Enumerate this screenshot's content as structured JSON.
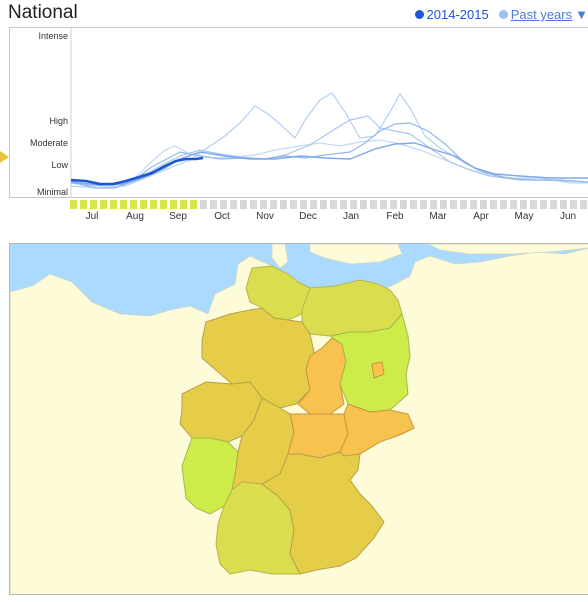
{
  "header": {
    "title": "National",
    "legend_current_label": "2014-2015",
    "legend_past_label": "Past years",
    "legend_past_arrow": "▼",
    "current_color": "#1c55d8",
    "past_color": "#9cc0ef"
  },
  "chart_data": {
    "type": "line",
    "y_levels": [
      "Intense",
      "High",
      "Moderate",
      "Low",
      "Minimal"
    ],
    "months": [
      "Jul",
      "Aug",
      "Sep",
      "Oct",
      "Nov",
      "Dec",
      "Jan",
      "Feb",
      "Mar",
      "Apr",
      "May",
      "Jun"
    ],
    "current_series_weeks": 13,
    "grid": false
  },
  "map": {
    "country": "Germany",
    "colors": {
      "water": "#aadaff",
      "land": "#fdfbd8",
      "green": "#cdec4a",
      "yellow_green": "#dadd4d",
      "mustard": "#e6cd48",
      "orange": "#f7c24d"
    }
  }
}
